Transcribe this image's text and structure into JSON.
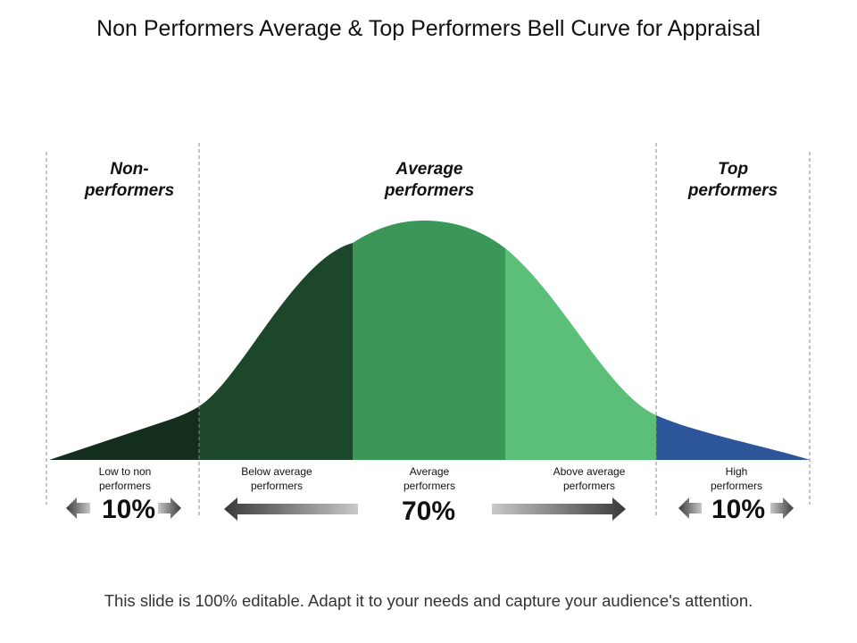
{
  "title": "Non Performers Average & Top  Performers Bell Curve for Appraisal",
  "headers": {
    "non": "Non-\nperformers",
    "average": "Average\nperformers",
    "top": "Top\nperformers"
  },
  "segments": [
    {
      "label": "Low to non performers",
      "color": "#132e1c"
    },
    {
      "label": "Below average performers",
      "color": "#1c472b"
    },
    {
      "label": "Average performers",
      "color": "#3b9659"
    },
    {
      "label": "Above average performers",
      "color": "#5bbf79"
    },
    {
      "label": "High performers",
      "color": "#2c5699"
    }
  ],
  "percentages": {
    "non": "10%",
    "average": "70%",
    "top": "10%"
  },
  "footer": "This slide is 100% editable. Adapt it to your needs and capture your audience's attention."
}
